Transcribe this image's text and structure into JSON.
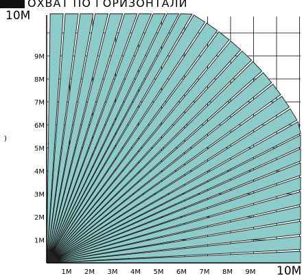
{
  "title": "ОХВАТ  ПО  ГОРИЗОНТАЛИ",
  "corner_label_top": "10М",
  "corner_label_right": "10М",
  "y_ticks": [
    "1М",
    "2М",
    "3М",
    "4М",
    "5М",
    "6М",
    "7М",
    "8М",
    "9М"
  ],
  "x_ticks": [
    "1М",
    "2М",
    "3М",
    "4М",
    "5М",
    "6М",
    "7М",
    "8М",
    "9М"
  ],
  "side_mark": ")",
  "colors": {
    "beam_fill": "#8ccbc9",
    "beam_stroke": "#1a1a1a",
    "grid": "#000000",
    "title_block": "#111111"
  },
  "diagram": {
    "range_m": 10,
    "beam_count": 30,
    "beam_lengths_m": [
      10.0,
      10.0,
      10.0,
      10.0,
      10.0,
      10.0,
      10.0,
      10.0,
      10.0,
      10.0,
      10.0,
      10.0,
      10.0,
      10.0,
      10.0,
      10.0,
      10.0,
      10.0,
      10.0,
      10.0,
      10.0,
      10.0,
      10.0,
      10.0,
      10.0,
      10.0,
      10.0,
      10.0,
      10.0,
      10.0
    ],
    "description_angles_deg_from_x_axis": [
      1,
      4,
      7,
      10,
      13,
      16,
      19,
      22,
      25,
      28,
      31,
      34,
      37,
      40,
      43,
      46,
      49,
      52,
      55,
      58,
      61,
      64,
      67,
      70,
      73,
      76,
      79,
      82,
      85,
      88
    ]
  }
}
